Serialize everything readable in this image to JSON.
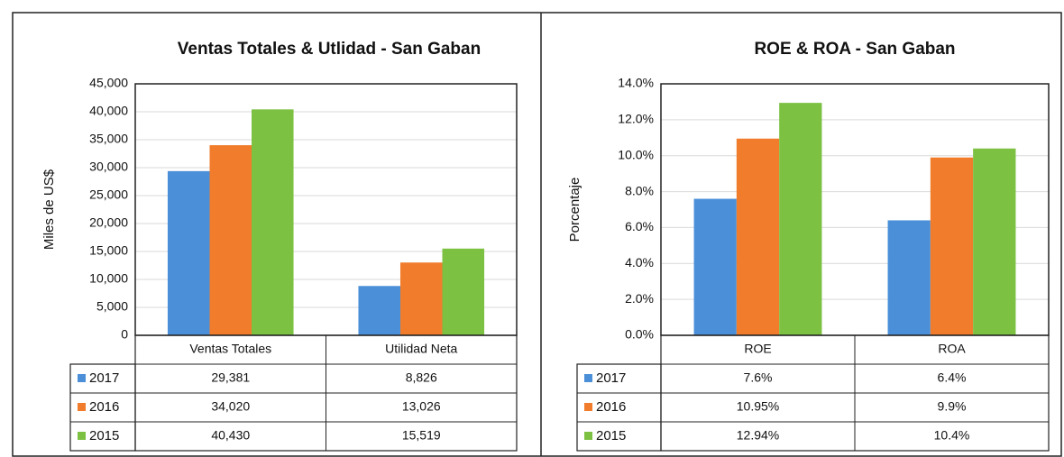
{
  "chart_data": [
    {
      "type": "bar",
      "title": "Ventas Totales & Utlidad - San Gaban",
      "y_label": "Miles de US$",
      "categories": [
        "Ventas Totales",
        "Utilidad Neta"
      ],
      "series": [
        {
          "name": "2017",
          "color": "#4a8fd8",
          "values": [
            29381,
            8826
          ],
          "value_labels": [
            "29,381",
            "8,826"
          ]
        },
        {
          "name": "2016",
          "color": "#f07c2c",
          "values": [
            34020,
            13026
          ],
          "value_labels": [
            "34,020",
            "13,026"
          ]
        },
        {
          "name": "2015",
          "color": "#7cc142",
          "values": [
            40430,
            15519
          ],
          "value_labels": [
            "40,430",
            "15,519"
          ]
        }
      ],
      "ylim": [
        0,
        45000
      ],
      "yticks": [
        0,
        {
          "value": 5000,
          "label": "5,000"
        },
        {
          "value": 10000,
          "label": "10,000"
        },
        {
          "value": 15000,
          "label": "15,000"
        },
        {
          "value": 20000,
          "label": "20,000"
        },
        {
          "value": 25000,
          "label": "25,000"
        },
        {
          "value": 30000,
          "label": "30,000"
        },
        {
          "value": 35000,
          "label": "35,000"
        },
        {
          "value": 40000,
          "label": "40,000"
        },
        {
          "value": 45000,
          "label": "45,000"
        }
      ],
      "grid": true
    },
    {
      "type": "bar",
      "title": "ROE & ROA - San Gaban",
      "y_label": "Porcentaje",
      "categories": [
        "ROE",
        "ROA"
      ],
      "series": [
        {
          "name": "2017",
          "color": "#4a8fd8",
          "values": [
            7.6,
            6.4
          ],
          "value_labels": [
            "7.6%",
            "6.4%"
          ]
        },
        {
          "name": "2016",
          "color": "#f07c2c",
          "values": [
            10.95,
            9.9
          ],
          "value_labels": [
            "10.95%",
            "9.9%"
          ]
        },
        {
          "name": "2015",
          "color": "#7cc142",
          "values": [
            12.94,
            10.4
          ],
          "value_labels": [
            "12.94%",
            "10.4%"
          ]
        }
      ],
      "ylim": [
        0,
        14
      ],
      "yticks": [
        {
          "value": 0,
          "label": "0.0%"
        },
        {
          "value": 2,
          "label": "2.0%"
        },
        {
          "value": 4,
          "label": "4.0%"
        },
        {
          "value": 6,
          "label": "6.0%"
        },
        {
          "value": 8,
          "label": "8.0%"
        },
        {
          "value": 10,
          "label": "10.0%"
        },
        {
          "value": 12,
          "label": "12.0%"
        },
        {
          "value": 14,
          "label": "14.0%"
        }
      ],
      "grid": true
    }
  ]
}
